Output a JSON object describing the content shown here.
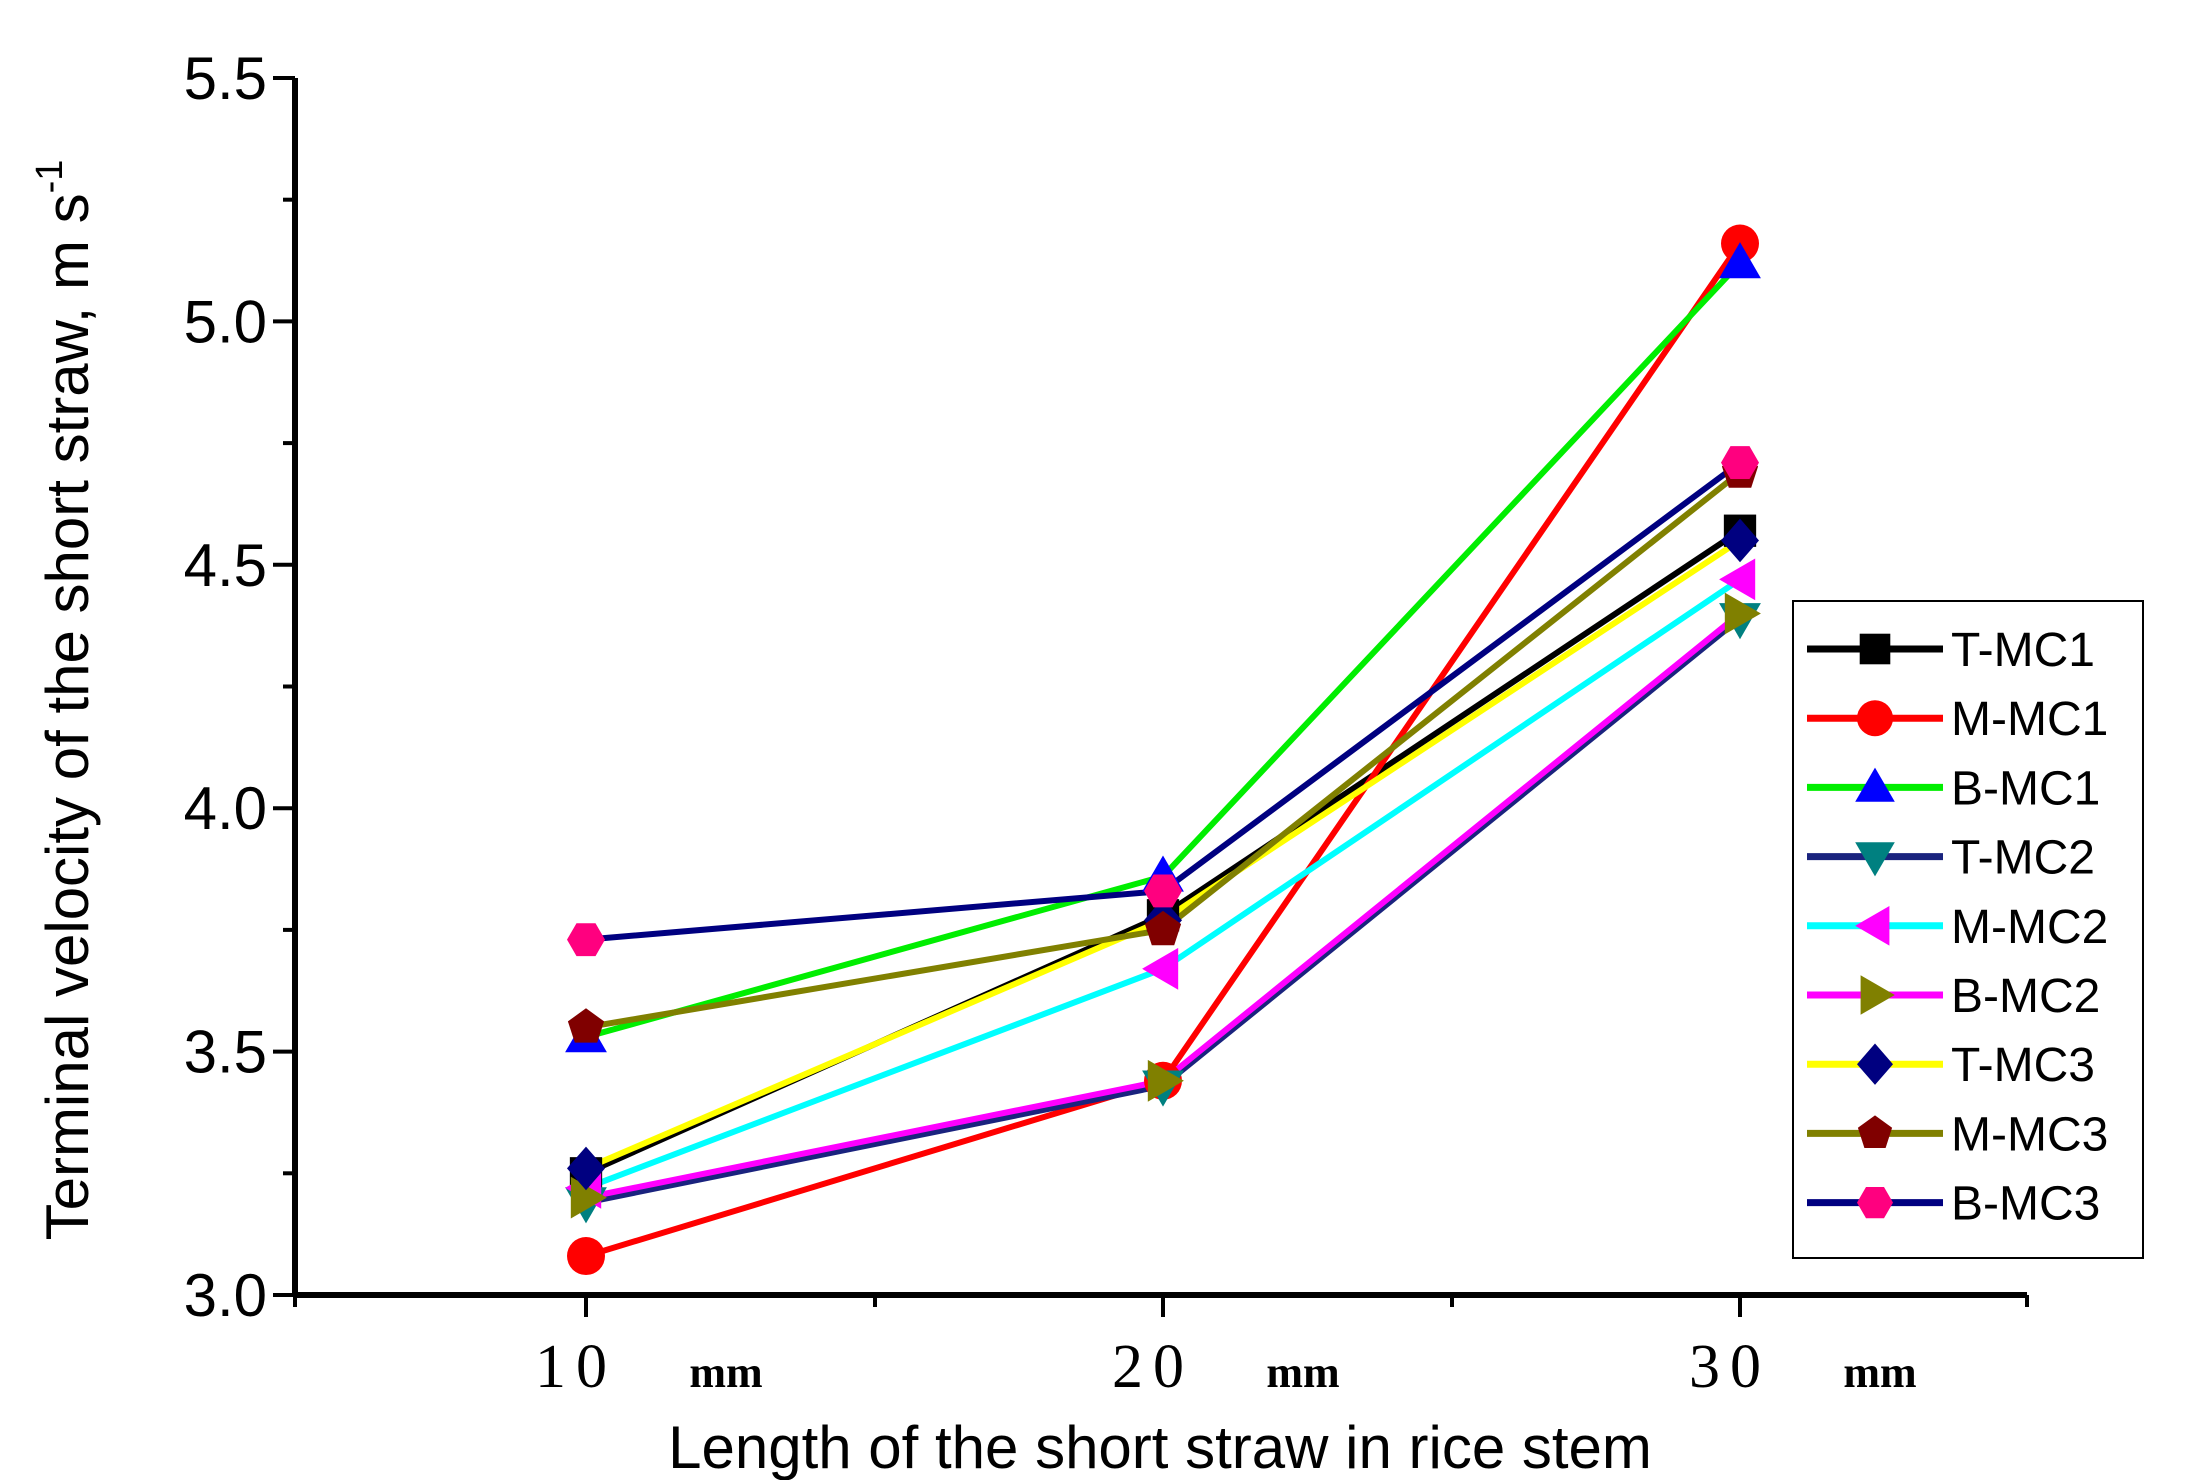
{
  "chart_data": {
    "type": "line",
    "categories": [
      {
        "num": "10",
        "unit": "mm"
      },
      {
        "num": "20",
        "unit": "mm"
      },
      {
        "num": "30",
        "unit": "mm"
      }
    ],
    "xlabel": "Length of the short straw in rice stem",
    "ylabel": "Terminal velocity of the short straw, m s",
    "ylabel_sup": "-1",
    "ylim": [
      3.0,
      5.5
    ],
    "yticks": [
      "3.0",
      "3.5",
      "4.0",
      "4.5",
      "5.0",
      "5.5"
    ],
    "legend_position": "right",
    "series": [
      {
        "name": "T-MC1",
        "color": "#000000",
        "marker": "square",
        "values": [
          3.25,
          3.78,
          4.57
        ]
      },
      {
        "name": "M-MC1",
        "color": "#ff0000",
        "marker": "circle",
        "values": [
          3.08,
          3.44,
          5.16
        ]
      },
      {
        "name": "B-MC1",
        "color": "#00ee00",
        "marker": "triangle-up",
        "values": [
          3.53,
          3.86,
          5.12
        ]
      },
      {
        "name": "T-MC2",
        "color": "#1a237e",
        "marker": "triangle-down",
        "values": [
          3.19,
          3.43,
          4.39
        ]
      },
      {
        "name": "M-MC2",
        "color": "#00ffff",
        "marker": "triangle-left",
        "values": [
          3.22,
          3.67,
          4.47
        ]
      },
      {
        "name": "B-MC2",
        "color": "#ff00ff",
        "marker": "triangle-right",
        "values": [
          3.2,
          3.44,
          4.4
        ]
      },
      {
        "name": "T-MC3",
        "color": "#ffff00",
        "marker": "diamond",
        "values": [
          3.26,
          3.77,
          4.55
        ]
      },
      {
        "name": "M-MC3",
        "color": "#808000",
        "marker": "pentagon",
        "values": [
          3.55,
          3.75,
          4.69
        ]
      },
      {
        "name": "B-MC3",
        "color": "#000080",
        "marker": "hexagon",
        "values": [
          3.73,
          3.83,
          4.71
        ]
      }
    ],
    "marker_colors": {
      "square": "#000000",
      "circle": "#ff0000",
      "triangle-up": "#0000ff",
      "triangle-down": "#008080",
      "triangle-left": "#ff00ff",
      "triangle-right": "#808000",
      "diamond": "#000080",
      "pentagon": "#800000",
      "hexagon": "#ff007f"
    }
  }
}
